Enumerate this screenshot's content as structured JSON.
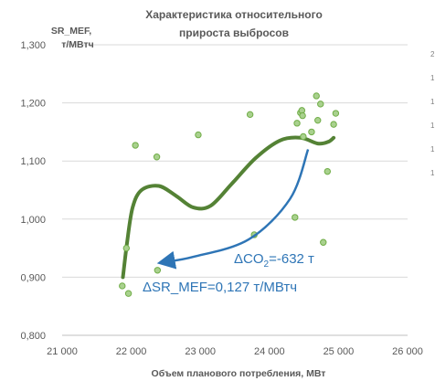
{
  "chart_data": {
    "type": "scatter",
    "title_lines": [
      "Характеристика относительного",
      "прироста выбросов"
    ],
    "ylabel_lines": [
      "SR_MEF,",
      "т/МВтч"
    ],
    "xlabel": "Объем планового потребления, МВт",
    "xlim": [
      21000,
      26000
    ],
    "ylim": [
      0.8,
      1.3
    ],
    "xticks": [
      21000,
      22000,
      23000,
      24000,
      25000,
      26000
    ],
    "xtick_labels": [
      "21 000",
      "22 000",
      "23 000",
      "24 000",
      "25 000",
      "26 000"
    ],
    "yticks": [
      0.8,
      0.9,
      1.0,
      1.1,
      1.2,
      1.3
    ],
    "ytick_labels": [
      "0,800",
      "0,900",
      "1,000",
      "1,100",
      "1,200",
      "1,300"
    ],
    "grid": "horizontal",
    "legend": "none",
    "colors": {
      "points_fill": "#A9D18E",
      "points_stroke": "#70AD47",
      "trend": "#548235",
      "annotation": "#2E75B6",
      "grid": "#d9d9d9",
      "text": "#595959"
    },
    "points": [
      {
        "x": 21870,
        "y": 0.885
      },
      {
        "x": 21930,
        "y": 0.95
      },
      {
        "x": 21960,
        "y": 0.872
      },
      {
        "x": 22060,
        "y": 1.127
      },
      {
        "x": 22370,
        "y": 1.107
      },
      {
        "x": 22380,
        "y": 0.912
      },
      {
        "x": 22970,
        "y": 1.145
      },
      {
        "x": 23720,
        "y": 1.18
      },
      {
        "x": 23780,
        "y": 0.973
      },
      {
        "x": 24370,
        "y": 1.003
      },
      {
        "x": 24400,
        "y": 1.165
      },
      {
        "x": 24450,
        "y": 1.183
      },
      {
        "x": 24470,
        "y": 1.187
      },
      {
        "x": 24480,
        "y": 1.178
      },
      {
        "x": 24490,
        "y": 1.142
      },
      {
        "x": 24610,
        "y": 1.15
      },
      {
        "x": 24680,
        "y": 1.212
      },
      {
        "x": 24700,
        "y": 1.17
      },
      {
        "x": 24740,
        "y": 1.198
      },
      {
        "x": 24780,
        "y": 0.96
      },
      {
        "x": 24840,
        "y": 1.082
      },
      {
        "x": 24930,
        "y": 1.163
      },
      {
        "x": 24960,
        "y": 1.182
      }
    ],
    "trend_line": [
      {
        "x": 21880,
        "y": 0.9
      },
      {
        "x": 21940,
        "y": 0.96
      },
      {
        "x": 22020,
        "y": 1.02
      },
      {
        "x": 22150,
        "y": 1.05
      },
      {
        "x": 22400,
        "y": 1.057
      },
      {
        "x": 22650,
        "y": 1.04
      },
      {
        "x": 22900,
        "y": 1.02
      },
      {
        "x": 23150,
        "y": 1.023
      },
      {
        "x": 23450,
        "y": 1.06
      },
      {
        "x": 23800,
        "y": 1.105
      },
      {
        "x": 24150,
        "y": 1.135
      },
      {
        "x": 24450,
        "y": 1.14
      },
      {
        "x": 24700,
        "y": 1.13
      },
      {
        "x": 24850,
        "y": 1.133
      },
      {
        "x": 24930,
        "y": 1.14
      }
    ],
    "arrow_path": [
      {
        "x": 24560,
        "y": 1.12
      },
      {
        "x": 24300,
        "y": 1.035
      },
      {
        "x": 23700,
        "y": 0.965
      },
      {
        "x": 22900,
        "y": 0.935
      },
      {
        "x": 22470,
        "y": 0.926
      }
    ],
    "annotations": {
      "delta_co2_prefix": "ΔCO",
      "delta_co2_sub": "2",
      "delta_co2_value": "=-632 т",
      "delta_sr": "ΔSR_MEF=0,127 т/МВтч"
    },
    "partial_second_axis": [
      "2",
      "1",
      "1",
      "1",
      "1",
      "1"
    ]
  }
}
